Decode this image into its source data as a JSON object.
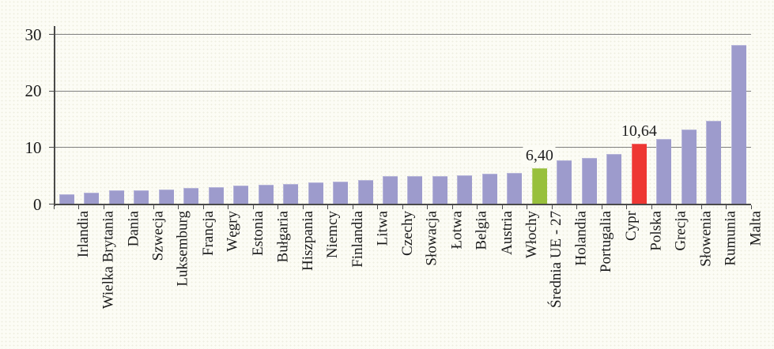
{
  "chart_data": {
    "type": "bar",
    "title": "",
    "xlabel": "",
    "ylabel": "",
    "ylim": [
      0,
      30
    ],
    "yticks": [
      0,
      10,
      20,
      30
    ],
    "grid": "horizontal",
    "legend": "none",
    "category_label_rotation_degrees": -90,
    "categories": [
      "Irlandia",
      "Wielka Brytania",
      "Dania",
      "Szwecja",
      "Luksemburg",
      "Francja",
      "Węgry",
      "Estonia",
      "Bułgaria",
      "Hiszpania",
      "Niemcy",
      "Finlandia",
      "Litwa",
      "Czechy",
      "Słowacja",
      "Łotwa",
      "Belgia",
      "Austria",
      "Włochy",
      "Średnia UE - 27",
      "Holandia",
      "Portugalia",
      "Cypr",
      "Polska",
      "Grecja",
      "Słowenia",
      "Rumunia",
      "Malta"
    ],
    "values": [
      1.8,
      2.0,
      2.4,
      2.5,
      2.6,
      2.8,
      3.0,
      3.3,
      3.4,
      3.5,
      3.9,
      4.0,
      4.2,
      4.9,
      5.0,
      5.0,
      5.1,
      5.35,
      5.5,
      6.4,
      7.8,
      8.2,
      8.8,
      10.64,
      11.5,
      13.2,
      14.7,
      28.1
    ],
    "highlighted_bars": [
      {
        "category": "Średnia UE - 27",
        "color": "#98C03C",
        "label": "6,40"
      },
      {
        "category": "Polska",
        "color": "#EE3733",
        "label": "10,64"
      }
    ],
    "colors": {
      "bar_default": "#9D9BCC",
      "bar_average": "#98C03C",
      "bar_poland": "#EE3733",
      "gridline": "#7F7F7F",
      "axis": "#4A4A4A",
      "text": "#1A1A1A",
      "background": "#FCFCF5"
    }
  }
}
